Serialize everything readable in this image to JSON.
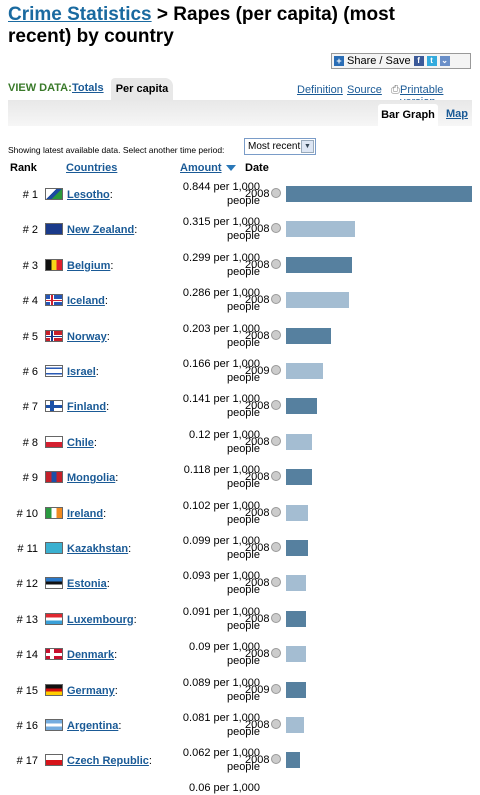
{
  "header": {
    "title_link": "Crime Statistics",
    "title_rest": " > Rapes (per capita) (most recent) by country"
  },
  "share": {
    "label": "Share / Save",
    "icons": [
      "plus-icon",
      "facebook-icon",
      "twitter-icon",
      "more-icon"
    ]
  },
  "view_data": {
    "label": "VIEW DATA:",
    "tabs": [
      "Totals",
      "Per capita"
    ],
    "links": [
      "Definition",
      "Source",
      "Printable version"
    ]
  },
  "view_tabs": [
    "Bar Graph",
    "Map"
  ],
  "period": {
    "text": "Showing latest available data. Select another time period:",
    "selected": "Most recent"
  },
  "columns": {
    "rank": "Rank",
    "countries": "Countries",
    "amount": "Amount",
    "date": "Date"
  },
  "colors": {
    "bar_dark": "#56809f",
    "bar_light": "#a4bdd2",
    "link": "#1a5a96"
  },
  "rows": [
    {
      "rank": "# 1",
      "country": "Lesotho",
      "amount": "0.844 per 1,000",
      "unit": "people",
      "date": "2008",
      "value": 0.844
    },
    {
      "rank": "# 2",
      "country": "New Zealand",
      "amount": "0.315 per 1,000",
      "unit": "people",
      "date": "2008",
      "value": 0.315
    },
    {
      "rank": "# 3",
      "country": "Belgium",
      "amount": "0.299 per 1,000",
      "unit": "people",
      "date": "2008",
      "value": 0.299
    },
    {
      "rank": "# 4",
      "country": "Iceland",
      "amount": "0.286 per 1,000",
      "unit": "people",
      "date": "2008",
      "value": 0.286
    },
    {
      "rank": "# 5",
      "country": "Norway",
      "amount": "0.203 per 1,000",
      "unit": "people",
      "date": "2008",
      "value": 0.203
    },
    {
      "rank": "# 6",
      "country": "Israel",
      "amount": "0.166 per 1,000",
      "unit": "people",
      "date": "2009",
      "value": 0.166
    },
    {
      "rank": "# 7",
      "country": "Finland",
      "amount": "0.141 per 1,000",
      "unit": "people",
      "date": "2008",
      "value": 0.141
    },
    {
      "rank": "# 8",
      "country": "Chile",
      "amount": "0.12 per 1,000",
      "unit": "people",
      "date": "2008",
      "value": 0.12
    },
    {
      "rank": "# 9",
      "country": "Mongolia",
      "amount": "0.118 per 1,000",
      "unit": "people",
      "date": "2008",
      "value": 0.118
    },
    {
      "rank": "# 10",
      "country": "Ireland",
      "amount": "0.102 per 1,000",
      "unit": "people",
      "date": "2008",
      "value": 0.102
    },
    {
      "rank": "# 11",
      "country": "Kazakhstan",
      "amount": "0.099 per 1,000",
      "unit": "people",
      "date": "2008",
      "value": 0.099
    },
    {
      "rank": "# 12",
      "country": "Estonia",
      "amount": "0.093 per 1,000",
      "unit": "people",
      "date": "2008",
      "value": 0.093
    },
    {
      "rank": "# 13",
      "country": "Luxembourg",
      "amount": "0.091 per 1,000",
      "unit": "people",
      "date": "2008",
      "value": 0.091
    },
    {
      "rank": "# 14",
      "country": "Denmark",
      "amount": "0.09 per 1,000",
      "unit": "people",
      "date": "2008",
      "value": 0.09
    },
    {
      "rank": "# 15",
      "country": "Germany",
      "amount": "0.089 per 1,000",
      "unit": "people",
      "date": "2009",
      "value": 0.089
    },
    {
      "rank": "# 16",
      "country": "Argentina",
      "amount": "0.081 per 1,000",
      "unit": "people",
      "date": "2008",
      "value": 0.081
    },
    {
      "rank": "# 17",
      "country": "Czech Republic",
      "amount": "0.062 per 1,000",
      "unit": "people",
      "date": "2008",
      "value": 0.062
    }
  ],
  "partial_row": {
    "amount": "0.06 per 1,000"
  }
}
